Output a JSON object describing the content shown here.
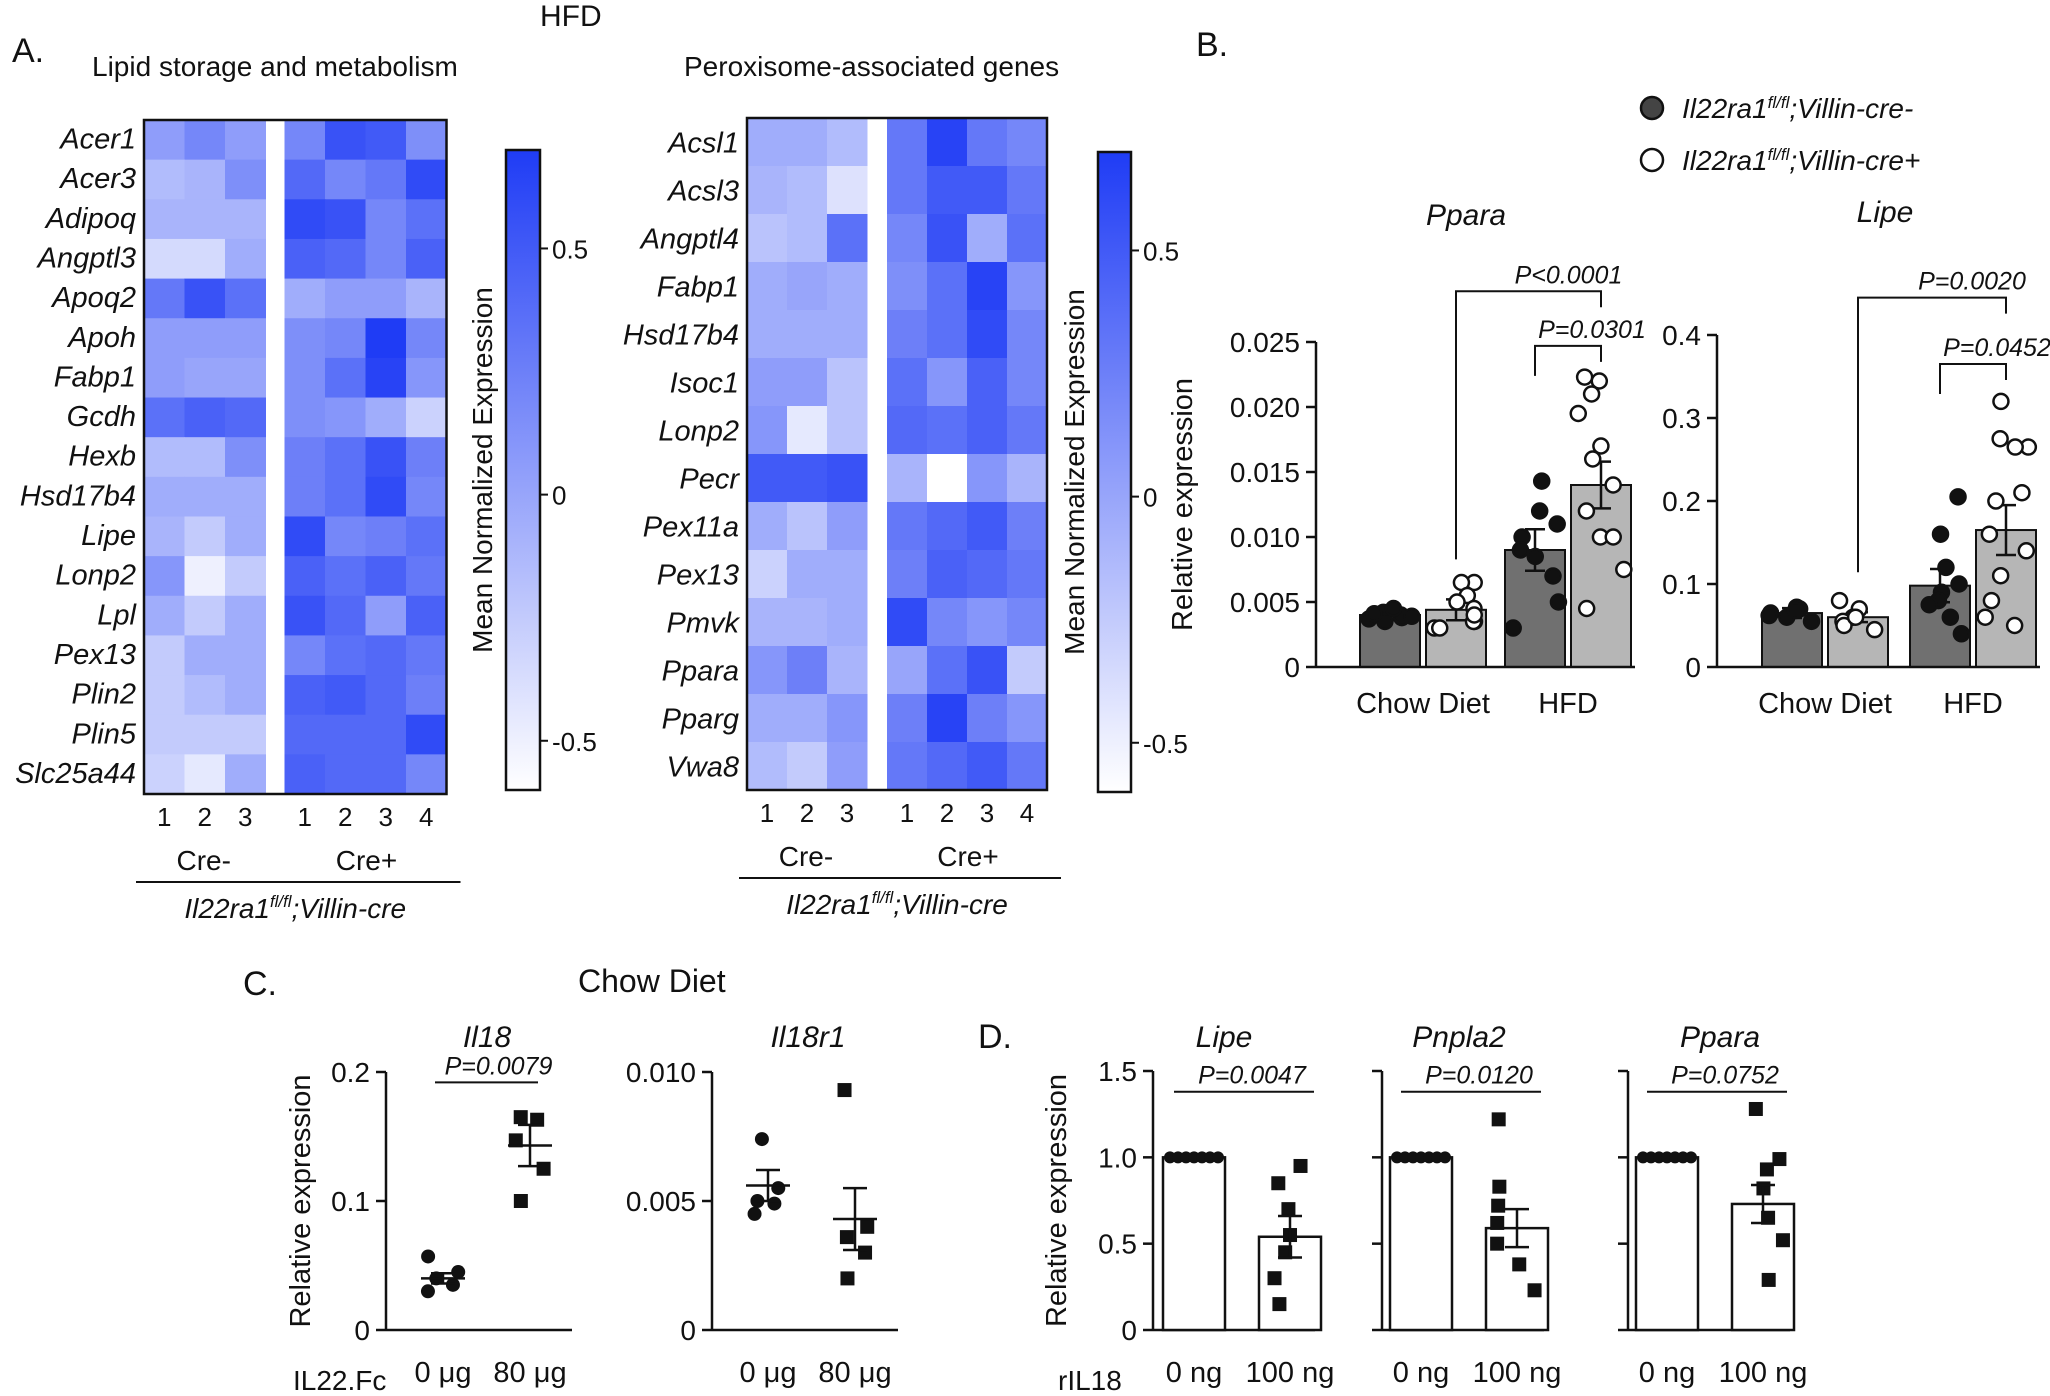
{
  "colors": {
    "heat_low": "#ffffff",
    "heat_high": "#1f3cf5",
    "bar_dark": "#707070",
    "bar_light": "#b6b6b6",
    "dot_filled": "#111111",
    "dot_open": "#ffffff",
    "axis": "#111111"
  },
  "panel_labels": {
    "a": "A.",
    "b": "B.",
    "c": "C.",
    "d": "D."
  },
  "top_header": "HFD",
  "chart_data": [
    {
      "id": "heat1",
      "type": "heatmap",
      "title": "Lipid storage and metabolism",
      "rows": [
        "Acer1",
        "Acer3",
        "Adipoq",
        "Angptl3",
        "Apoq2",
        "Apoh",
        "Fabp1",
        "Gcdh",
        "Hexb",
        "Hsd17b4",
        "Lipe",
        "Lonp2",
        "Lpl",
        "Pex13",
        "Plin2",
        "Plin5",
        "Slc25a44"
      ],
      "columns": [
        "1",
        "2",
        "3",
        "1",
        "2",
        "3",
        "4"
      ],
      "groups": [
        {
          "label": "Cre-",
          "n": 3
        },
        {
          "label": "Cre+",
          "n": 4
        }
      ],
      "genotype_prefix": "Il22ra1",
      "genotype_sup": "fl/fl",
      "genotype_suffix": ";Villin-cre",
      "colorbar_label": "Mean Normalized Expression",
      "colorbar_ticks": [
        "0.5",
        "0",
        "-0.5"
      ],
      "colorbar_tick_values": [
        0.5,
        0,
        -0.5
      ],
      "colorbar_range": [
        -0.6,
        0.7
      ],
      "values": [
        [
          0.05,
          0.2,
          0.05,
          0.2,
          0.55,
          0.5,
          0.15
        ],
        [
          -0.15,
          -0.1,
          0.15,
          0.4,
          0.2,
          0.3,
          0.6
        ],
        [
          -0.1,
          -0.1,
          -0.1,
          0.6,
          0.55,
          0.2,
          0.35
        ],
        [
          -0.35,
          -0.35,
          -0.05,
          0.45,
          0.4,
          0.2,
          0.45
        ],
        [
          0.3,
          0.55,
          0.35,
          -0.05,
          0.05,
          0.05,
          -0.1
        ],
        [
          0.05,
          0.05,
          0.05,
          0.15,
          0.2,
          0.7,
          0.2
        ],
        [
          0.05,
          0.0,
          0.0,
          0.15,
          0.35,
          0.65,
          0.1
        ],
        [
          0.35,
          0.45,
          0.4,
          0.15,
          0.1,
          -0.05,
          -0.3
        ],
        [
          -0.15,
          -0.15,
          0.15,
          0.25,
          0.35,
          0.55,
          0.25
        ],
        [
          -0.05,
          -0.05,
          -0.05,
          0.25,
          0.35,
          0.6,
          0.2
        ],
        [
          -0.1,
          -0.25,
          -0.05,
          0.6,
          0.2,
          0.25,
          0.35
        ],
        [
          0.1,
          -0.5,
          -0.25,
          0.45,
          0.35,
          0.45,
          0.3
        ],
        [
          -0.05,
          -0.25,
          -0.05,
          0.55,
          0.4,
          0.05,
          0.45
        ],
        [
          -0.25,
          -0.05,
          -0.05,
          0.2,
          0.35,
          0.4,
          0.3
        ],
        [
          -0.25,
          -0.15,
          -0.05,
          0.45,
          0.5,
          0.4,
          0.25
        ],
        [
          -0.25,
          -0.25,
          -0.25,
          0.4,
          0.4,
          0.4,
          0.6
        ],
        [
          -0.3,
          -0.45,
          -0.05,
          0.45,
          0.4,
          0.4,
          0.2
        ]
      ]
    },
    {
      "id": "heat2",
      "type": "heatmap",
      "title": "Peroxisome-associated genes",
      "rows": [
        "Acsl1",
        "Acsl3",
        "Angptl4",
        "Fabp1",
        "Hsd17b4",
        "Isoc1",
        "Lonp2",
        "Pecr",
        "Pex11a",
        "Pex13",
        "Pmvk",
        "Ppara",
        "Pparg",
        "Vwa8"
      ],
      "columns": [
        "1",
        "2",
        "3",
        "1",
        "2",
        "3",
        "4"
      ],
      "groups": [
        {
          "label": "Cre-",
          "n": 3
        },
        {
          "label": "Cre+",
          "n": 4
        }
      ],
      "genotype_prefix": "Il22ra1",
      "genotype_sup": "fl/fl",
      "genotype_suffix": ";Villin-cre",
      "colorbar_label": "Mean Normalized Expression",
      "colorbar_ticks": [
        "0.5",
        "0",
        "-0.5"
      ],
      "colorbar_tick_values": [
        0.5,
        0,
        -0.5
      ],
      "colorbar_range": [
        -0.6,
        0.7
      ],
      "values": [
        [
          -0.05,
          -0.05,
          -0.15,
          0.3,
          0.65,
          0.3,
          0.2
        ],
        [
          -0.1,
          -0.15,
          -0.4,
          0.3,
          0.5,
          0.5,
          0.3
        ],
        [
          -0.2,
          -0.15,
          0.35,
          0.2,
          0.55,
          -0.05,
          0.35
        ],
        [
          -0.05,
          0.0,
          -0.05,
          0.15,
          0.35,
          0.65,
          0.1
        ],
        [
          -0.05,
          -0.05,
          -0.05,
          0.25,
          0.35,
          0.6,
          0.2
        ],
        [
          0.05,
          0.05,
          -0.2,
          0.35,
          0.1,
          0.45,
          0.2
        ],
        [
          0.1,
          -0.45,
          -0.2,
          0.4,
          0.35,
          0.45,
          0.3
        ],
        [
          0.5,
          0.5,
          0.55,
          -0.1,
          -0.6,
          0.1,
          -0.1
        ],
        [
          -0.05,
          -0.2,
          0.05,
          0.3,
          0.4,
          0.5,
          0.25
        ],
        [
          -0.3,
          -0.05,
          -0.05,
          0.25,
          0.45,
          0.4,
          0.3
        ],
        [
          -0.1,
          -0.1,
          -0.05,
          0.6,
          0.2,
          0.1,
          0.2
        ],
        [
          0.1,
          0.25,
          -0.1,
          0.0,
          0.35,
          0.55,
          -0.25
        ],
        [
          -0.05,
          -0.05,
          0.1,
          0.25,
          0.65,
          0.25,
          0.1
        ],
        [
          -0.15,
          -0.25,
          0.05,
          0.3,
          0.4,
          0.5,
          0.3
        ]
      ]
    },
    {
      "id": "b_ppara",
      "type": "bar",
      "title": "Ppara",
      "ylabel": "Relative expression",
      "ylim": [
        0,
        0.025
      ],
      "yticks": [
        0,
        0.005,
        0.01,
        0.015,
        0.02,
        0.025
      ],
      "ytick_labels": [
        "0",
        "0.005",
        "0.010",
        "0.015",
        "0.020",
        "0.025"
      ],
      "categories": [
        "Chow Diet",
        "HFD"
      ],
      "series": [
        {
          "name": "Il22ra1fl/fl;Villin-cre-",
          "style": "dark",
          "means": [
            0.004,
            0.009
          ],
          "sem": [
            0.0004,
            0.0016
          ],
          "points": [
            [
              0.0042,
              0.0038,
              0.0035,
              0.004,
              0.0045,
              0.0037,
              0.0041,
              0.0039
            ],
            [
              0.0143,
              0.012,
              0.011,
              0.01,
              0.009,
              0.0085,
              0.007,
              0.005,
              0.003
            ]
          ]
        },
        {
          "name": "Il22ra1fl/fl;Villin-cre+",
          "style": "light",
          "means": [
            0.0044,
            0.014
          ],
          "sem": [
            0.0008,
            0.0018
          ],
          "points": [
            [
              0.0065,
              0.0065,
              0.0055,
              0.005,
              0.0045,
              0.0035,
              0.003,
              0.003,
              0.0035,
              0.004
            ],
            [
              0.0223,
              0.022,
              0.021,
              0.0195,
              0.017,
              0.016,
              0.014,
              0.012,
              0.01,
              0.01,
              0.0075,
              0.0045
            ]
          ]
        }
      ],
      "comparisons": [
        {
          "label": "P<0.0001",
          "level": 0.0289
        },
        {
          "label": "P=0.0301",
          "level": 0.0247
        }
      ]
    },
    {
      "id": "b_lipe",
      "type": "bar",
      "title": "Lipe",
      "ylabel": "",
      "ylim": [
        0,
        0.4
      ],
      "yticks": [
        0,
        0.1,
        0.2,
        0.3,
        0.4
      ],
      "ytick_labels": [
        "0",
        "0.1",
        "0.2",
        "0.3",
        "0.4"
      ],
      "categories": [
        "Chow Diet",
        "HFD"
      ],
      "series": [
        {
          "name": "Il22ra1fl/fl;Villin-cre-",
          "style": "dark",
          "means": [
            0.065,
            0.098
          ],
          "sem": [
            0.006,
            0.02
          ],
          "points": [
            [
              0.072,
              0.07,
              0.065,
              0.06,
              0.055,
              0.062,
              0.068
            ],
            [
              0.205,
              0.16,
              0.12,
              0.1,
              0.09,
              0.08,
              0.075,
              0.06,
              0.04
            ]
          ]
        },
        {
          "name": "Il22ra1fl/fl;Villin-cre+",
          "style": "light",
          "means": [
            0.06,
            0.165
          ],
          "sem": [
            0.006,
            0.03
          ],
          "points": [
            [
              0.08,
              0.07,
              0.06,
              0.055,
              0.05,
              0.045,
              0.06
            ],
            [
              0.32,
              0.275,
              0.265,
              0.265,
              0.21,
              0.2,
              0.16,
              0.14,
              0.11,
              0.08,
              0.06,
              0.05
            ]
          ]
        }
      ],
      "comparisons": [
        {
          "label": "P=0.0020",
          "level": 0.445
        },
        {
          "label": "P=0.0452",
          "level": 0.365
        }
      ]
    },
    {
      "id": "c_il18",
      "type": "scatter",
      "title": "Il18",
      "ylabel": "Relative expression",
      "ylim": [
        0,
        0.2
      ],
      "yticks": [
        0,
        0.1,
        0.2
      ],
      "ytick_labels": [
        "0",
        "0.1",
        "0.2"
      ],
      "categories": [
        "0 μg",
        "80 μg"
      ],
      "groups": [
        {
          "marker": "circle",
          "mean": 0.04,
          "sem": 0.004,
          "points": [
            0.057,
            0.045,
            0.04,
            0.035,
            0.03
          ]
        },
        {
          "marker": "square",
          "mean": 0.143,
          "sem": 0.016,
          "points": [
            0.165,
            0.163,
            0.147,
            0.125,
            0.1
          ]
        }
      ],
      "comparison": {
        "label": "P=0.0079",
        "level": 0.192
      }
    },
    {
      "id": "c_il18r1",
      "type": "scatter",
      "title": "Il18r1",
      "ylabel": "",
      "ylim": [
        0,
        0.01
      ],
      "yticks": [
        0,
        0.005,
        0.01
      ],
      "ytick_labels": [
        "0",
        "0.005",
        "0.010"
      ],
      "categories": [
        "0 μg",
        "80 μg"
      ],
      "groups": [
        {
          "marker": "circle",
          "mean": 0.0056,
          "sem": 0.0006,
          "points": [
            0.0074,
            0.0055,
            0.005,
            0.0049,
            0.0045
          ]
        },
        {
          "marker": "square",
          "mean": 0.0043,
          "sem": 0.0012,
          "points": [
            0.0093,
            0.004,
            0.0036,
            0.003,
            0.002
          ]
        }
      ]
    },
    {
      "id": "d_lipe",
      "type": "bar",
      "title": "Lipe",
      "ylabel": "Relative expression",
      "ylim": [
        0,
        1.5
      ],
      "yticks": [
        0,
        0.5,
        1.0,
        1.5
      ],
      "ytick_labels": [
        "0",
        "0.5",
        "1.0",
        "1.5"
      ],
      "categories": [
        "0 ng",
        "100 ng"
      ],
      "means": [
        1.0,
        0.54
      ],
      "sem": [
        0.0,
        0.12
      ],
      "points": [
        [
          1,
          1,
          1,
          1,
          1,
          1,
          1
        ],
        [
          0.95,
          0.85,
          0.7,
          0.55,
          0.45,
          0.3,
          0.15
        ]
      ],
      "comparison": {
        "label": "P=0.0047",
        "level": 1.38
      }
    },
    {
      "id": "d_pnpla2",
      "type": "bar",
      "title": "Pnpla2",
      "ylabel": "",
      "ylim": [
        0,
        1.5
      ],
      "yticks": [
        0,
        0.5,
        1.0,
        1.5
      ],
      "ytick_labels": [],
      "categories": [
        "0 ng",
        "100 ng"
      ],
      "means": [
        1.0,
        0.59
      ],
      "sem": [
        0.0,
        0.11
      ],
      "points": [
        [
          1,
          1,
          1,
          1,
          1,
          1,
          1
        ],
        [
          1.22,
          0.83,
          0.72,
          0.62,
          0.5,
          0.38,
          0.23
        ]
      ],
      "comparison": {
        "label": "P=0.0120",
        "level": 1.38
      }
    },
    {
      "id": "d_ppara",
      "type": "bar",
      "title": "Ppara",
      "ylabel": "",
      "ylim": [
        0,
        1.5
      ],
      "yticks": [
        0,
        0.5,
        1.0,
        1.5
      ],
      "ytick_labels": [],
      "categories": [
        "0 ng",
        "100 ng"
      ],
      "means": [
        1.0,
        0.73
      ],
      "sem": [
        0.0,
        0.11
      ],
      "points": [
        [
          1,
          1,
          1,
          1,
          1,
          1,
          1
        ],
        [
          1.28,
          0.99,
          0.93,
          0.82,
          0.65,
          0.52,
          0.29
        ]
      ],
      "comparison": {
        "label": "P=0.0752",
        "level": 1.38
      }
    }
  ],
  "legend_b": [
    {
      "prefix": "Il22ra1",
      "sup": "fl/fl",
      "suffix": ";Villin-cre-",
      "marker": "filled"
    },
    {
      "prefix": "Il22ra1",
      "sup": "fl/fl",
      "suffix": ";Villin-cre+",
      "marker": "open"
    }
  ],
  "panel_c": {
    "heading": "Chow Diet",
    "treatment_label": "IL22.Fc"
  },
  "panel_d": {
    "treatment_label": "rIL18"
  }
}
